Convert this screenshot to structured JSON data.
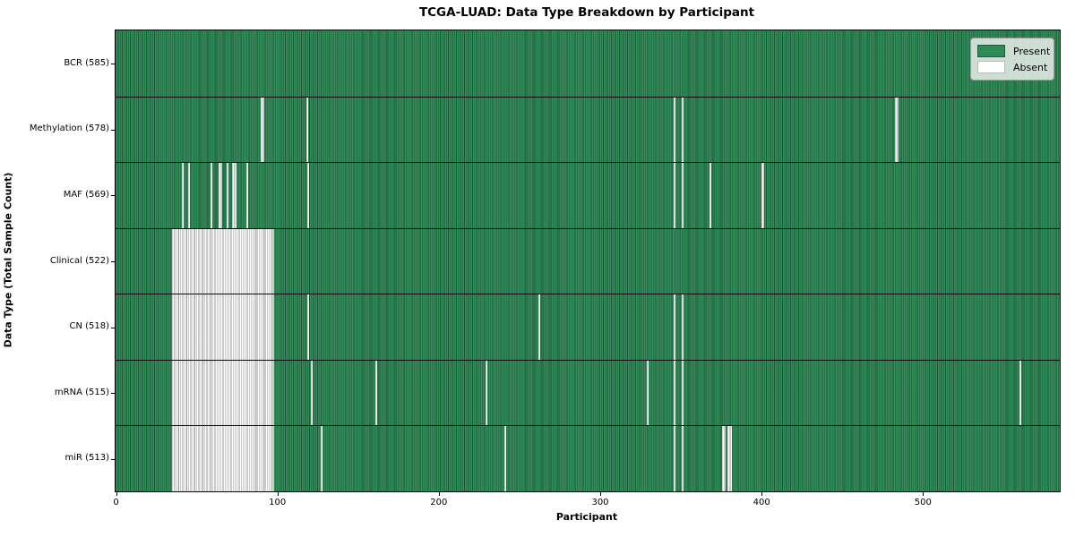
{
  "title": "TCGA-LUAD: Data Type Breakdown by Participant",
  "axes": {
    "xlabel": "Participant",
    "ylabel": "Data Type (Total Sample Count)"
  },
  "legend": {
    "items": [
      {
        "label": "Present",
        "color": "#2e8b57",
        "edge": "#1d5c3a"
      },
      {
        "label": "Absent",
        "color": "#ffffff",
        "edge": "#bbbbbb"
      }
    ]
  },
  "colors": {
    "present": "#2e8b57",
    "absent": "#ffffff",
    "plot_border": "#000000",
    "row_separator": "#0a0a0a",
    "legend_background": "#ebeeeb",
    "text": "#000000"
  },
  "chart_data": {
    "type": "heatmap",
    "title": "TCGA-LUAD: Data Type Breakdown by Participant",
    "xlabel": "Participant",
    "ylabel": "Data Type (Total Sample Count)",
    "legend": [
      "Present",
      "Absent"
    ],
    "legend_position": "upper right",
    "n_participants": 585,
    "x_range": [
      0,
      585
    ],
    "x_ticks": [
      0,
      100,
      200,
      300,
      400,
      500
    ],
    "cell_states": {
      "present": 1,
      "absent": 0
    },
    "rows": [
      {
        "label": "BCR (585)",
        "data_type": "BCR",
        "present_count": 585,
        "absent_runs": []
      },
      {
        "label": "Methylation (578)",
        "data_type": "Methylation",
        "present_count": 578,
        "absent_runs": [
          [
            90,
            91
          ],
          [
            118,
            118
          ],
          [
            346,
            346
          ],
          [
            351,
            351
          ],
          [
            483,
            484
          ]
        ]
      },
      {
        "label": "MAF (569)",
        "data_type": "MAF",
        "present_count": 569,
        "absent_runs": [
          [
            41,
            41
          ],
          [
            45,
            45
          ],
          [
            59,
            59
          ],
          [
            64,
            65
          ],
          [
            69,
            69
          ],
          [
            72,
            74
          ],
          [
            81,
            81
          ],
          [
            119,
            119
          ],
          [
            346,
            346
          ],
          [
            351,
            351
          ],
          [
            368,
            368
          ],
          [
            400,
            401
          ]
        ]
      },
      {
        "label": "Clinical (522)",
        "data_type": "Clinical",
        "present_count": 522,
        "absent_runs": [
          [
            35,
            97
          ]
        ]
      },
      {
        "label": "CN (518)",
        "data_type": "CN",
        "present_count": 518,
        "absent_runs": [
          [
            35,
            97
          ],
          [
            119,
            119
          ],
          [
            262,
            262
          ],
          [
            346,
            346
          ],
          [
            351,
            351
          ]
        ]
      },
      {
        "label": "mRNA (515)",
        "data_type": "mRNA",
        "present_count": 515,
        "absent_runs": [
          [
            35,
            97
          ],
          [
            121,
            121
          ],
          [
            161,
            161
          ],
          [
            229,
            229
          ],
          [
            329,
            329
          ],
          [
            346,
            346
          ],
          [
            351,
            351
          ],
          [
            560,
            560
          ]
        ]
      },
      {
        "label": "miR (513)",
        "data_type": "miR",
        "present_count": 513,
        "absent_runs": [
          [
            35,
            97
          ],
          [
            127,
            127
          ],
          [
            241,
            241
          ],
          [
            346,
            346
          ],
          [
            351,
            351
          ],
          [
            376,
            377
          ],
          [
            379,
            381
          ]
        ]
      }
    ]
  }
}
